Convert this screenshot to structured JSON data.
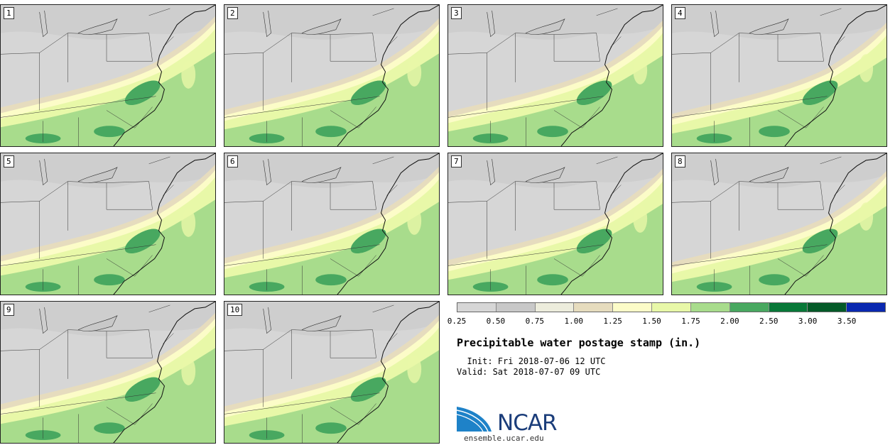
{
  "panels": [
    {
      "label": "1"
    },
    {
      "label": "2"
    },
    {
      "label": "3"
    },
    {
      "label": "4"
    },
    {
      "label": "5"
    },
    {
      "label": "6"
    },
    {
      "label": "7"
    },
    {
      "label": "8"
    },
    {
      "label": "9"
    },
    {
      "label": "10"
    }
  ],
  "colorbar": {
    "colors": [
      "#d6d6d6",
      "#c8c8c8",
      "#ececdc",
      "#e6dcbe",
      "#fcfcc8",
      "#e8f8a8",
      "#a8dc8c",
      "#48a860",
      "#087838",
      "#045a28",
      "#0a28b0"
    ],
    "ticks": [
      "0.25",
      "0.50",
      "0.75",
      "1.00",
      "1.25",
      "1.50",
      "1.75",
      "2.00",
      "2.50",
      "3.00",
      "3.50"
    ]
  },
  "title": "Precipitable water postage stamp (in.)",
  "init": "  Init: Fri 2018-07-06 12 UTC",
  "valid": "Valid: Sat 2018-07-07 09 UTC",
  "logo": {
    "name": "NCAR",
    "url": "ensemble.ucar.edu"
  }
}
